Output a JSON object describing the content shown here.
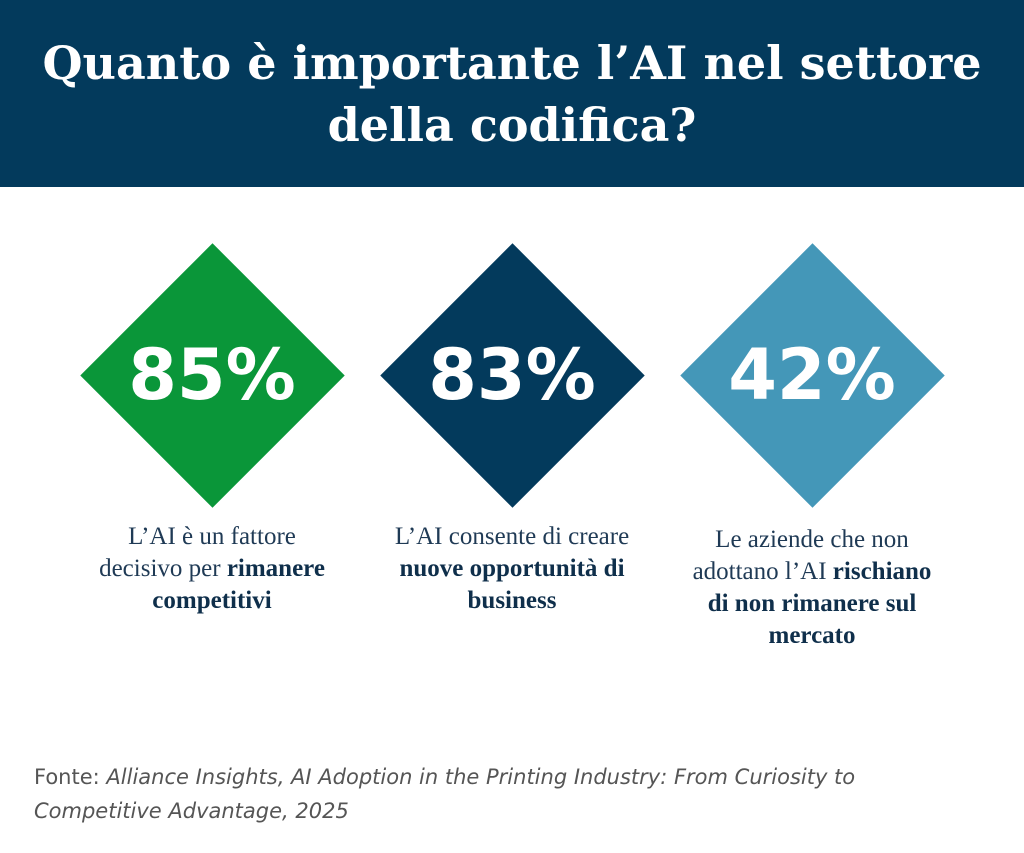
{
  "header": {
    "title": "Quanto è importante l’AI nel settore della codifica?"
  },
  "items": [
    {
      "value": "85%",
      "text": "L’AI è un fattore decisivo per",
      "bold": "rimanere competitivi"
    },
    {
      "value": "83%",
      "text": "L’AI consente di creare",
      "bold": "nuove opportunità di business"
    },
    {
      "value": "42%",
      "text": "Le aziende che non adottano l’AI",
      "bold": "rischiano di non rimanere sul mercato"
    }
  ],
  "source": {
    "label": "Fonte:",
    "text": "Alliance Insights, AI Adoption in the Printing Industry: From Curiosity to Competitive Advantage, 2025"
  }
}
